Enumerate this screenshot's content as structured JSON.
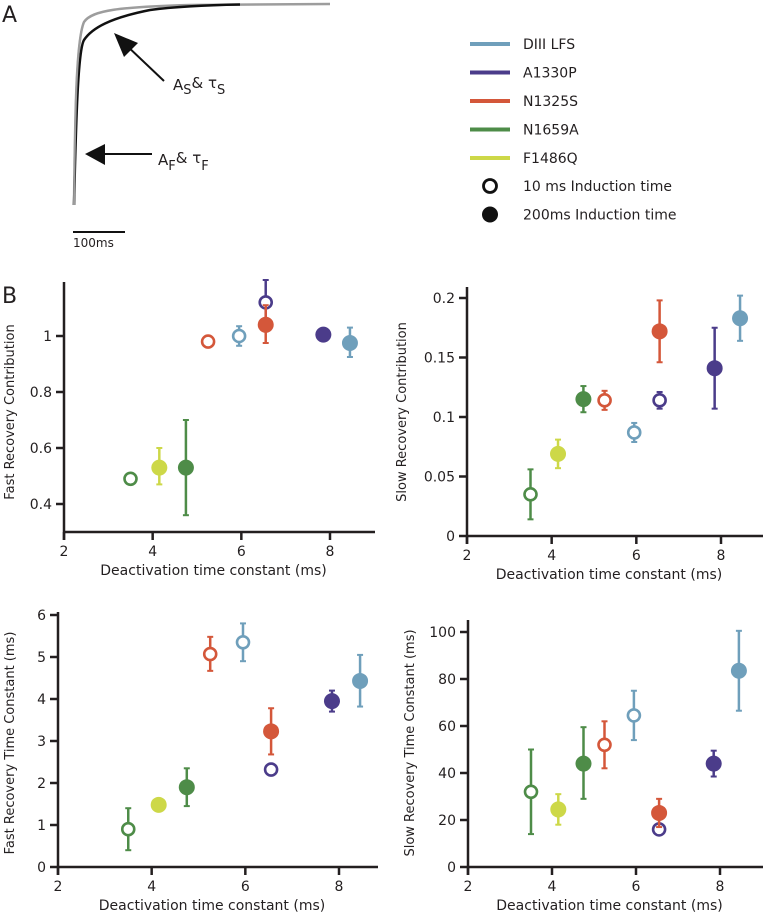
{
  "panel_labels": {
    "a": "A",
    "b": "B"
  },
  "panel_a": {
    "scale_bar_label": "100ms",
    "arrow_slow_label": {
      "main": "A",
      "sub1": "S",
      "amp": "& τ",
      "sub2": "S"
    },
    "arrow_fast_label": {
      "main": "A",
      "sub1": "F",
      "amp": "& τ",
      "sub2": "F"
    }
  },
  "legend": {
    "series": [
      {
        "name": "DIII LFS",
        "color": "#6f9fbb"
      },
      {
        "name": "A1330P",
        "color": "#4b3c8a"
      },
      {
        "name": "N1325S",
        "color": "#d4573a"
      },
      {
        "name": "N1659A",
        "color": "#4e8c48"
      },
      {
        "name": "F1486Q",
        "color": "#cdd848"
      }
    ],
    "markers": [
      {
        "label": "10 ms Induction time",
        "style": "open"
      },
      {
        "label": "200ms Induction time",
        "style": "filled"
      }
    ]
  },
  "chart_data": [
    {
      "type": "scatter",
      "title": "",
      "xlabel": "Deactivation time constant (ms)",
      "ylabel": "Fast Recovery Contribution",
      "xlim": [
        2,
        9
      ],
      "ylim": [
        0.3,
        1.19
      ],
      "xticks": [
        "2",
        "4",
        "6",
        "8"
      ],
      "xtick_values": [
        2,
        4,
        6,
        8
      ],
      "yticks": [
        "0.4",
        "0.6",
        "0.8",
        "1"
      ],
      "ytick_values": [
        0.4,
        0.6,
        0.8,
        1.0
      ],
      "points": [
        {
          "series": "N1659A",
          "induction": "10 ms",
          "x": 3.5,
          "y": 0.49,
          "err": null
        },
        {
          "series": "F1486Q",
          "induction": "200 ms",
          "x": 4.15,
          "y": 0.53,
          "err": [
            0.47,
            0.6
          ]
        },
        {
          "series": "N1659A",
          "induction": "200 ms",
          "x": 4.75,
          "y": 0.53,
          "err": [
            0.36,
            0.7
          ]
        },
        {
          "series": "N1325S",
          "induction": "10 ms",
          "x": 5.25,
          "y": 0.98,
          "err": null
        },
        {
          "series": "DIII LFS",
          "induction": "10 ms",
          "x": 5.95,
          "y": 1.0,
          "err": [
            0.965,
            1.035
          ]
        },
        {
          "series": "A1330P",
          "induction": "10 ms",
          "x": 6.55,
          "y": 1.12,
          "err": [
            1.04,
            1.2
          ]
        },
        {
          "series": "N1325S",
          "induction": "200 ms",
          "x": 6.55,
          "y": 1.04,
          "err": [
            0.975,
            1.11
          ]
        },
        {
          "series": "A1330P",
          "induction": "200 ms",
          "x": 7.85,
          "y": 1.005,
          "err": null
        },
        {
          "series": "DIII LFS",
          "induction": "200 ms",
          "x": 8.45,
          "y": 0.975,
          "err": [
            0.925,
            1.03
          ]
        }
      ]
    },
    {
      "type": "scatter",
      "title": "",
      "xlabel": "Deactivation time constant (ms)",
      "ylabel": "Slow Recovery Contribution",
      "xlim": [
        2,
        9
      ],
      "ylim": [
        0,
        0.21
      ],
      "xticks": [
        "2",
        "4",
        "6",
        "8"
      ],
      "xtick_values": [
        2,
        4,
        6,
        8
      ],
      "yticks": [
        "0",
        "0.05",
        "0.1",
        "0.15",
        "0.2"
      ],
      "ytick_values": [
        0,
        0.05,
        0.1,
        0.15,
        0.2
      ],
      "points": [
        {
          "series": "N1659A",
          "induction": "10 ms",
          "x": 3.5,
          "y": 0.035,
          "err": [
            0.014,
            0.056
          ]
        },
        {
          "series": "F1486Q",
          "induction": "200 ms",
          "x": 4.15,
          "y": 0.069,
          "err": [
            0.057,
            0.081
          ]
        },
        {
          "series": "N1659A",
          "induction": "200 ms",
          "x": 4.75,
          "y": 0.115,
          "err": [
            0.104,
            0.126
          ]
        },
        {
          "series": "N1325S",
          "induction": "10 ms",
          "x": 5.25,
          "y": 0.114,
          "err": [
            0.106,
            0.122
          ]
        },
        {
          "series": "DIII LFS",
          "induction": "10 ms",
          "x": 5.95,
          "y": 0.087,
          "err": [
            0.079,
            0.095
          ]
        },
        {
          "series": "A1330P",
          "induction": "10 ms",
          "x": 6.55,
          "y": 0.114,
          "err": [
            0.107,
            0.121
          ]
        },
        {
          "series": "N1325S",
          "induction": "200 ms",
          "x": 6.55,
          "y": 0.172,
          "err": [
            0.146,
            0.198
          ]
        },
        {
          "series": "A1330P",
          "induction": "200 ms",
          "x": 7.85,
          "y": 0.141,
          "err": [
            0.107,
            0.175
          ]
        },
        {
          "series": "DIII LFS",
          "induction": "200 ms",
          "x": 8.45,
          "y": 0.183,
          "err": [
            0.164,
            0.202
          ]
        }
      ]
    },
    {
      "type": "scatter",
      "title": "",
      "xlabel": "Deactivation time constant (ms)",
      "ylabel": "Fast Recovery Time Constant (ms)",
      "xlim": [
        2,
        9
      ],
      "ylim": [
        0,
        6.1
      ],
      "xticks": [
        "2",
        "4",
        "6",
        "8"
      ],
      "xtick_values": [
        2,
        4,
        6,
        8
      ],
      "yticks": [
        "0",
        "1",
        "2",
        "3",
        "4",
        "5",
        "6"
      ],
      "ytick_values": [
        0,
        1,
        2,
        3,
        4,
        5,
        6
      ],
      "points": [
        {
          "series": "N1659A",
          "induction": "10 ms",
          "x": 3.5,
          "y": 0.9,
          "err": [
            0.4,
            1.4
          ]
        },
        {
          "series": "F1486Q",
          "induction": "200 ms",
          "x": 4.15,
          "y": 1.48,
          "err": null
        },
        {
          "series": "N1659A",
          "induction": "200 ms",
          "x": 4.75,
          "y": 1.9,
          "err": [
            1.45,
            2.35
          ]
        },
        {
          "series": "N1325S",
          "induction": "10 ms",
          "x": 5.25,
          "y": 5.07,
          "err": [
            4.67,
            5.48
          ]
        },
        {
          "series": "DIII LFS",
          "induction": "10 ms",
          "x": 5.95,
          "y": 5.35,
          "err": [
            4.9,
            5.8
          ]
        },
        {
          "series": "A1330P",
          "induction": "10 ms",
          "x": 6.55,
          "y": 2.32,
          "err": null
        },
        {
          "series": "N1325S",
          "induction": "200 ms",
          "x": 6.55,
          "y": 3.23,
          "err": [
            2.68,
            3.78
          ]
        },
        {
          "series": "A1330P",
          "induction": "200 ms",
          "x": 7.85,
          "y": 3.95,
          "err": [
            3.7,
            4.2
          ]
        },
        {
          "series": "DIII LFS",
          "induction": "200 ms",
          "x": 8.45,
          "y": 4.43,
          "err": [
            3.82,
            5.05
          ]
        }
      ]
    },
    {
      "type": "scatter",
      "title": "",
      "xlabel": "Deactivation time constant (ms)",
      "ylabel": "Slow Recovery Time Constant (ms)",
      "xlim": [
        2,
        9
      ],
      "ylim": [
        0,
        105
      ],
      "xticks": [
        "2",
        "4",
        "6",
        "8"
      ],
      "xtick_values": [
        2,
        4,
        6,
        8
      ],
      "yticks": [
        "0",
        "20",
        "40",
        "60",
        "80",
        "100"
      ],
      "ytick_values": [
        0,
        20,
        40,
        60,
        80,
        100
      ],
      "points": [
        {
          "series": "N1659A",
          "induction": "10 ms",
          "x": 3.5,
          "y": 32,
          "err": [
            14,
            50
          ]
        },
        {
          "series": "F1486Q",
          "induction": "200 ms",
          "x": 4.15,
          "y": 24.5,
          "err": [
            18,
            31
          ]
        },
        {
          "series": "N1659A",
          "induction": "200 ms",
          "x": 4.75,
          "y": 44,
          "err": [
            29,
            59.5
          ]
        },
        {
          "series": "N1325S",
          "induction": "10 ms",
          "x": 5.25,
          "y": 52,
          "err": [
            42,
            62
          ]
        },
        {
          "series": "DIII LFS",
          "induction": "10 ms",
          "x": 5.95,
          "y": 64.5,
          "err": [
            54,
            75
          ]
        },
        {
          "series": "A1330P",
          "induction": "10 ms",
          "x": 6.55,
          "y": 16,
          "err": null
        },
        {
          "series": "N1325S",
          "induction": "200 ms",
          "x": 6.55,
          "y": 23,
          "err": [
            17,
            29
          ]
        },
        {
          "series": "A1330P",
          "induction": "200 ms",
          "x": 7.85,
          "y": 44,
          "err": [
            38.5,
            49.5
          ]
        },
        {
          "series": "DIII LFS",
          "induction": "200 ms",
          "x": 8.45,
          "y": 83.5,
          "err": [
            66.5,
            100.5
          ]
        }
      ]
    }
  ]
}
